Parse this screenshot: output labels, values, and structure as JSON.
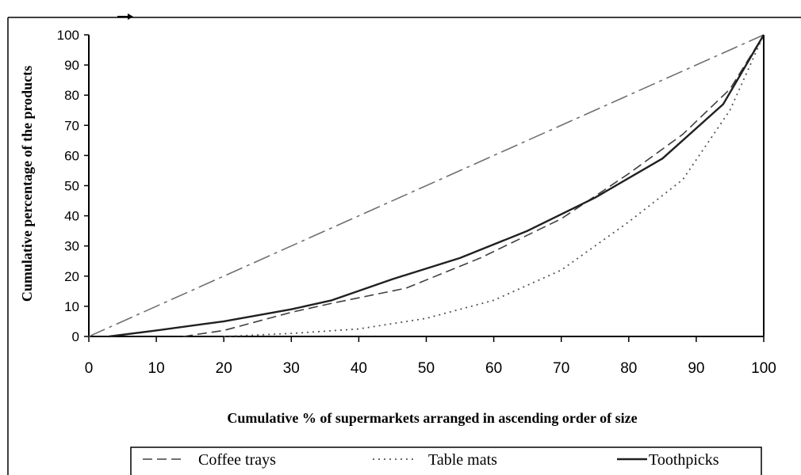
{
  "chart_data": {
    "type": "line",
    "xlabel": "Cumulative % of supermarkets arranged in ascending order of size",
    "ylabel": "Cumulative percentage of the products",
    "xlim": [
      0,
      100
    ],
    "ylim": [
      0,
      100
    ],
    "x_ticks": [
      "0",
      "10",
      "20",
      "30",
      "40",
      "50",
      "60",
      "70",
      "80",
      "90",
      "100"
    ],
    "y_ticks": [
      "0",
      "10",
      "20",
      "30",
      "40",
      "50",
      "60",
      "70",
      "80",
      "90",
      "100"
    ],
    "grid": false,
    "legend_position": "bottom",
    "series": [
      {
        "name": "",
        "style": "dash-dot",
        "color": "#707070",
        "points": [
          [
            0,
            0
          ],
          [
            100,
            100
          ]
        ]
      },
      {
        "name": "Coffee trays",
        "style": "dashed",
        "color": "#404040",
        "points": [
          [
            14,
            0
          ],
          [
            20,
            2
          ],
          [
            30,
            8
          ],
          [
            36,
            11
          ],
          [
            47,
            16
          ],
          [
            58,
            26
          ],
          [
            70,
            39
          ],
          [
            80,
            54
          ],
          [
            88,
            67
          ],
          [
            95,
            82
          ],
          [
            100,
            100
          ]
        ]
      },
      {
        "name": "Table mats",
        "style": "dotted",
        "color": "#555555",
        "points": [
          [
            20,
            0
          ],
          [
            30,
            1
          ],
          [
            40,
            2.5
          ],
          [
            50,
            6
          ],
          [
            60,
            12
          ],
          [
            70,
            22
          ],
          [
            80,
            38
          ],
          [
            88,
            52
          ],
          [
            95,
            75
          ],
          [
            100,
            100
          ]
        ]
      },
      {
        "name": "Toothpicks",
        "style": "solid",
        "color": "#202020",
        "points": [
          [
            3,
            0
          ],
          [
            10,
            2
          ],
          [
            20,
            5
          ],
          [
            30,
            9
          ],
          [
            36,
            12
          ],
          [
            45,
            19
          ],
          [
            55,
            26
          ],
          [
            65,
            35
          ],
          [
            75,
            46
          ],
          [
            85,
            59
          ],
          [
            94,
            77
          ],
          [
            100,
            100
          ]
        ]
      }
    ]
  }
}
